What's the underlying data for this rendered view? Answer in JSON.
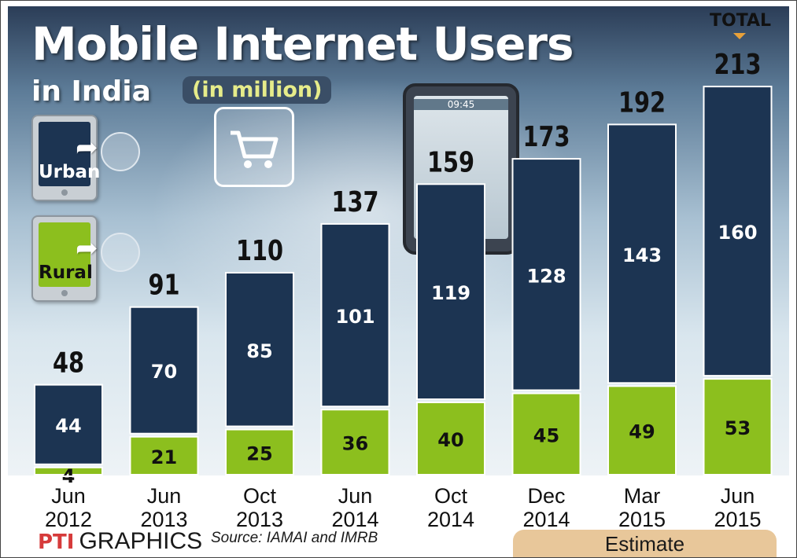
{
  "header": {
    "title": "Mobile Internet Users",
    "subtitle": "in India",
    "unit": "(in million)",
    "total_tag": "TOTAL"
  },
  "legend": {
    "urban": "Urban",
    "rural": "Rural"
  },
  "footer": {
    "brand_mark": "PTI",
    "brand": "GRAPHICS",
    "source": "Source: IAMAI and IMRB",
    "estimate": "Estimate"
  },
  "colors": {
    "urban": "#1c3452",
    "rural": "#8cbf1e",
    "estimate": "#e8c79a"
  },
  "chart_data": {
    "type": "bar",
    "stacked": true,
    "categories": [
      [
        "Jun",
        "2012"
      ],
      [
        "Jun",
        "2013"
      ],
      [
        "Oct",
        "2013"
      ],
      [
        "Jun",
        "2014"
      ],
      [
        "Oct",
        "2014"
      ],
      [
        "Dec",
        "2014"
      ],
      [
        "Mar",
        "2015"
      ],
      [
        "Jun",
        "2015"
      ]
    ],
    "series": [
      {
        "name": "Rural",
        "values": [
          4,
          21,
          25,
          36,
          40,
          45,
          49,
          53
        ]
      },
      {
        "name": "Urban",
        "values": [
          44,
          70,
          85,
          101,
          119,
          128,
          143,
          160
        ]
      }
    ],
    "totals": [
      48,
      91,
      110,
      137,
      159,
      173,
      192,
      213
    ],
    "estimate_categories": [
      "Dec 2014",
      "Mar 2015",
      "Jun 2015"
    ],
    "title": "Mobile Internet Users in India (in million)",
    "xlabel": "",
    "ylabel": "",
    "ylim": [
      0,
      230
    ],
    "grid": false,
    "legend": "left"
  }
}
